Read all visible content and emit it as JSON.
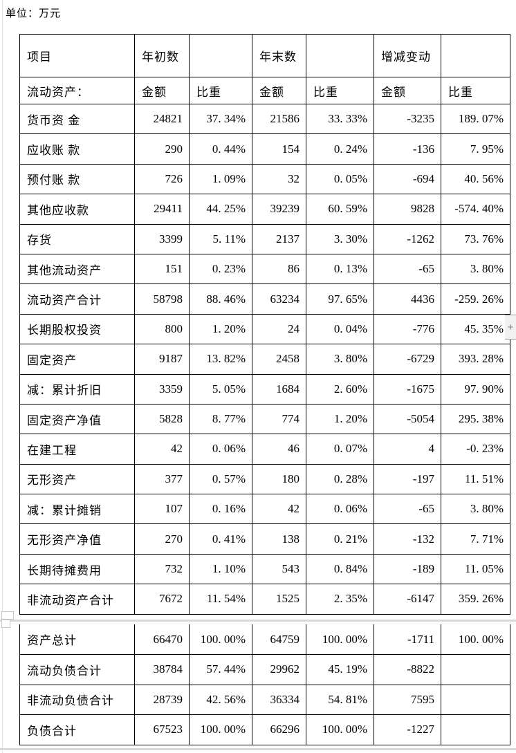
{
  "page": {
    "unit_label": "单位：万元"
  },
  "header": {
    "col_item": "项目",
    "groups": [
      "年初数",
      "年末数",
      "增减变动"
    ],
    "sub_item": "流动资产：",
    "sub_row": [
      "金额",
      "比重",
      "金额",
      "比重",
      "金额",
      "比重"
    ]
  },
  "t1": {
    "rows": [
      [
        "货币资 金",
        "24821",
        "37. 34%",
        "21586",
        "33. 33%",
        "-3235",
        "189. 07%"
      ],
      [
        "应收账 款",
        "290",
        "0. 44%",
        "154",
        "0. 24%",
        "-136",
        "7. 95%"
      ],
      [
        "预付账 款",
        "726",
        "1. 09%",
        "32",
        "0. 05%",
        "-694",
        "40. 56%"
      ],
      [
        "其他应收款",
        "29411",
        "44. 25%",
        "39239",
        "60. 59%",
        "9828",
        "-574. 40%"
      ],
      [
        "存货",
        "3399",
        "5. 11%",
        "2137",
        "3. 30%",
        "-1262",
        "73. 76%"
      ],
      [
        "其他流动资产",
        "151",
        "0. 23%",
        "86",
        "0. 13%",
        "-65",
        "3. 80%"
      ],
      [
        "流动资产合计",
        "58798",
        "88. 46%",
        "63234",
        "97. 65%",
        "4436",
        "-259. 26%"
      ],
      [
        "长期股权投资",
        "800",
        "1. 20%",
        "24",
        "0. 04%",
        "-776",
        "45. 35%"
      ],
      [
        "固定资产",
        "9187",
        "13. 82%",
        "2458",
        "3. 80%",
        "-6729",
        "393. 28%"
      ],
      [
        "减：累计折旧",
        "3359",
        "5. 05%",
        "1684",
        "2. 60%",
        "-1675",
        "97. 90%"
      ],
      [
        "固定资产净值",
        "5828",
        "8. 77%",
        "774",
        "1. 20%",
        "-5054",
        "295. 38%"
      ],
      [
        "在建工程",
        "42",
        "0. 06%",
        "46",
        "0. 07%",
        "4",
        "-0. 23%"
      ],
      [
        "无形资产",
        "377",
        "0. 57%",
        "180",
        "0. 28%",
        "-197",
        "11. 51%"
      ],
      [
        "减：累计摊销",
        "107",
        "0. 16%",
        "42",
        "0. 06%",
        "-65",
        "3. 80%"
      ],
      [
        "无形资产净值",
        "270",
        "0. 41%",
        "138",
        "0. 21%",
        "-132",
        "7. 71%"
      ],
      [
        "长期待摊费用",
        "732",
        "1. 10%",
        "543",
        "0. 84%",
        "-189",
        "11. 05%"
      ],
      [
        "非流动资产合计",
        "7672",
        "11. 54%",
        "1525",
        "2. 35%",
        "-6147",
        "359. 26%"
      ]
    ]
  },
  "t2": {
    "rows": [
      [
        "资产总计",
        "66470",
        "100. 00%",
        "64759",
        "100. 00%",
        "-1711",
        "100. 00%"
      ],
      [
        "流动负债合计",
        "38784",
        "57. 44%",
        "29962",
        "45. 19%",
        "-8822",
        ""
      ],
      [
        "非流动负债合计",
        "28739",
        "42. 56%",
        "36334",
        "54. 81%",
        "7595",
        ""
      ],
      [
        "负债合计",
        "67523",
        "100. 00%",
        "66296",
        "100. 00%",
        "-1227",
        ""
      ]
    ]
  },
  "widgets": {
    "plus_label": "+"
  },
  "colors": {
    "border": "#000000",
    "page_break": "#d9d9d9",
    "scroll_bg": "#f1f1f1"
  }
}
